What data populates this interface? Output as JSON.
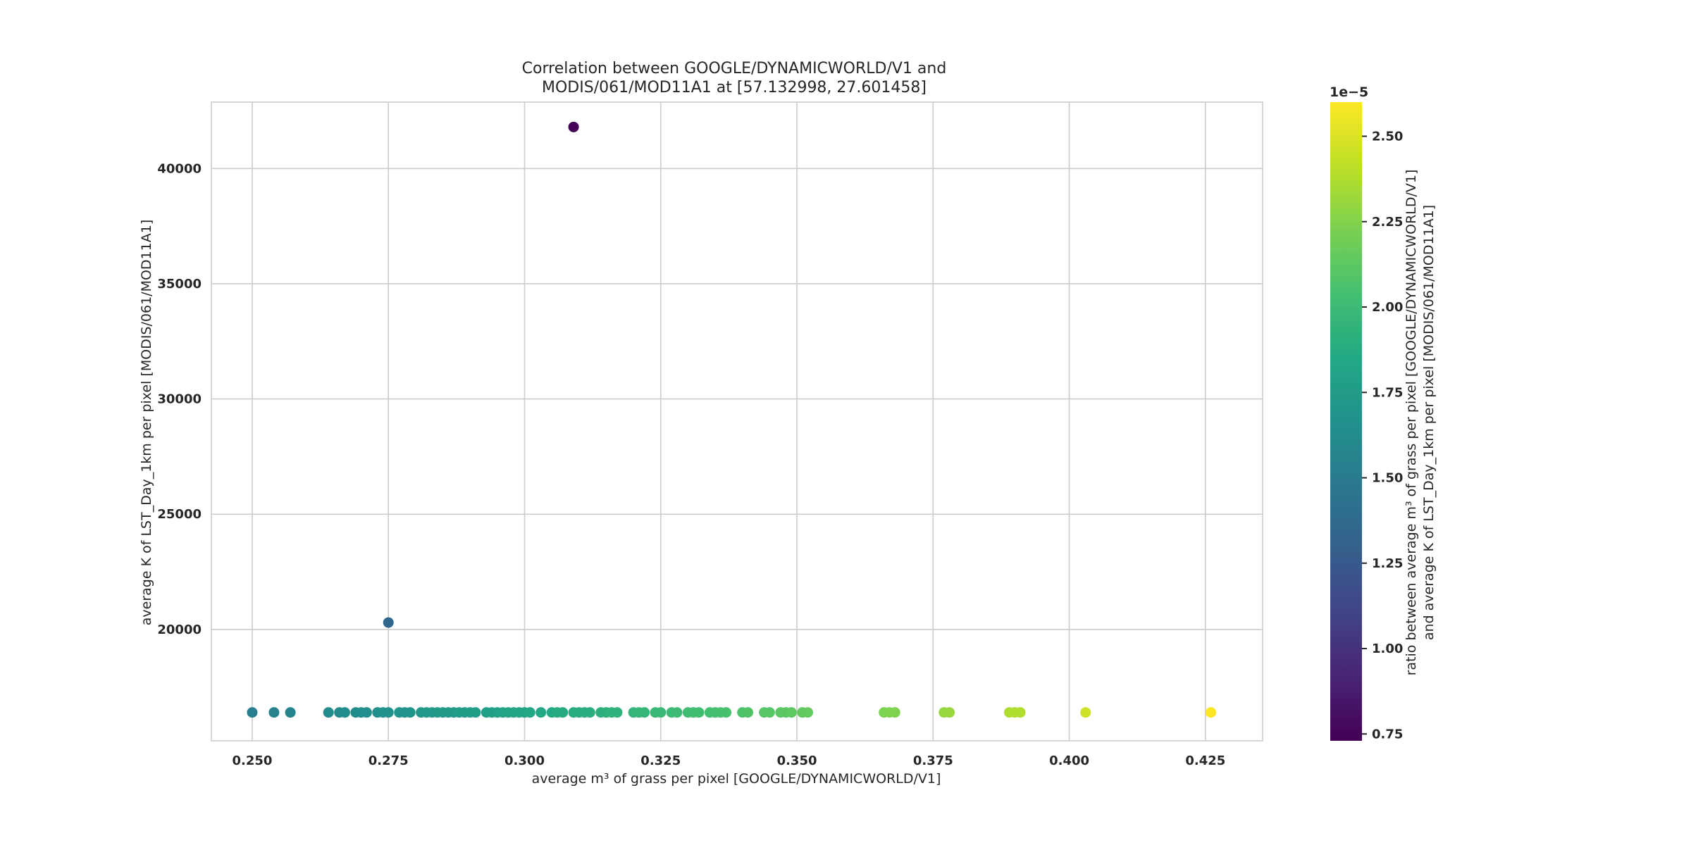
{
  "chart_data": {
    "type": "scatter",
    "title_lines": [
      "Correlation between GOOGLE/DYNAMICWORLD/V1 and",
      "MODIS/061/MOD11A1 at [57.132998, 27.601458]"
    ],
    "xlabel": "average m³ of grass per pixel [GOOGLE/DYNAMICWORLD/V1]",
    "ylabel": "average K of LST_Day_1km per pixel [MODIS/061/MOD11A1]",
    "xlim": [
      0.2425,
      0.4355
    ],
    "ylim": [
      15170,
      42880
    ],
    "xticks": [
      0.25,
      0.275,
      0.3,
      0.325,
      0.35,
      0.375,
      0.4,
      0.425
    ],
    "xtick_labels": [
      "0.250",
      "0.275",
      "0.300",
      "0.325",
      "0.350",
      "0.375",
      "0.400",
      "0.425"
    ],
    "yticks": [
      20000,
      25000,
      30000,
      35000,
      40000
    ],
    "ytick_labels": [
      "20000",
      "25000",
      "30000",
      "35000",
      "40000"
    ],
    "grid": true,
    "colormap": "viridis",
    "colorbar": {
      "label_lines": [
        "ratio between average m³ of grass per pixel [GOOGLE/DYNAMICWORLD/V1]",
        "and average K of LST_Day_1km per pixel [MODIS/061/MOD11A1]"
      ],
      "exponent_label": "1e−5",
      "range": [
        0.73,
        2.6
      ],
      "ticks": [
        0.75,
        1.0,
        1.25,
        1.5,
        1.75,
        2.0,
        2.25,
        2.5
      ],
      "tick_labels": [
        "0.75",
        "1.00",
        "1.25",
        "1.50",
        "1.75",
        "2.00",
        "2.25",
        "2.50"
      ]
    },
    "points": [
      {
        "x": 0.309,
        "y": 41800,
        "c": 0.74
      },
      {
        "x": 0.275,
        "y": 20300,
        "c": 1.35
      },
      {
        "x": 0.25,
        "y": 16400,
        "c": 1.52
      },
      {
        "x": 0.254,
        "y": 16400,
        "c": 1.55
      },
      {
        "x": 0.257,
        "y": 16400,
        "c": 1.57
      },
      {
        "x": 0.264,
        "y": 16400,
        "c": 1.61
      },
      {
        "x": 0.266,
        "y": 16400,
        "c": 1.62
      },
      {
        "x": 0.267,
        "y": 16400,
        "c": 1.63
      },
      {
        "x": 0.269,
        "y": 16400,
        "c": 1.64
      },
      {
        "x": 0.27,
        "y": 16400,
        "c": 1.65
      },
      {
        "x": 0.271,
        "y": 16400,
        "c": 1.65
      },
      {
        "x": 0.273,
        "y": 16400,
        "c": 1.66
      },
      {
        "x": 0.274,
        "y": 16400,
        "c": 1.67
      },
      {
        "x": 0.275,
        "y": 16400,
        "c": 1.67
      },
      {
        "x": 0.277,
        "y": 16400,
        "c": 1.69
      },
      {
        "x": 0.278,
        "y": 16400,
        "c": 1.69
      },
      {
        "x": 0.279,
        "y": 16400,
        "c": 1.7
      },
      {
        "x": 0.281,
        "y": 16400,
        "c": 1.71
      },
      {
        "x": 0.282,
        "y": 16400,
        "c": 1.72
      },
      {
        "x": 0.283,
        "y": 16400,
        "c": 1.72
      },
      {
        "x": 0.284,
        "y": 16400,
        "c": 1.73
      },
      {
        "x": 0.285,
        "y": 16400,
        "c": 1.74
      },
      {
        "x": 0.286,
        "y": 16400,
        "c": 1.74
      },
      {
        "x": 0.287,
        "y": 16400,
        "c": 1.75
      },
      {
        "x": 0.288,
        "y": 16400,
        "c": 1.76
      },
      {
        "x": 0.289,
        "y": 16400,
        "c": 1.76
      },
      {
        "x": 0.29,
        "y": 16400,
        "c": 1.77
      },
      {
        "x": 0.291,
        "y": 16400,
        "c": 1.77
      },
      {
        "x": 0.293,
        "y": 16400,
        "c": 1.79
      },
      {
        "x": 0.294,
        "y": 16400,
        "c": 1.79
      },
      {
        "x": 0.295,
        "y": 16400,
        "c": 1.8
      },
      {
        "x": 0.296,
        "y": 16400,
        "c": 1.8
      },
      {
        "x": 0.297,
        "y": 16400,
        "c": 1.81
      },
      {
        "x": 0.298,
        "y": 16400,
        "c": 1.82
      },
      {
        "x": 0.299,
        "y": 16400,
        "c": 1.82
      },
      {
        "x": 0.3,
        "y": 16400,
        "c": 1.83
      },
      {
        "x": 0.301,
        "y": 16400,
        "c": 1.84
      },
      {
        "x": 0.303,
        "y": 16400,
        "c": 1.85
      },
      {
        "x": 0.305,
        "y": 16400,
        "c": 1.86
      },
      {
        "x": 0.306,
        "y": 16400,
        "c": 1.87
      },
      {
        "x": 0.307,
        "y": 16400,
        "c": 1.87
      },
      {
        "x": 0.309,
        "y": 16400,
        "c": 1.88
      },
      {
        "x": 0.31,
        "y": 16400,
        "c": 1.89
      },
      {
        "x": 0.311,
        "y": 16400,
        "c": 1.9
      },
      {
        "x": 0.312,
        "y": 16400,
        "c": 1.9
      },
      {
        "x": 0.314,
        "y": 16400,
        "c": 1.91
      },
      {
        "x": 0.315,
        "y": 16400,
        "c": 1.92
      },
      {
        "x": 0.316,
        "y": 16400,
        "c": 1.93
      },
      {
        "x": 0.317,
        "y": 16400,
        "c": 1.93
      },
      {
        "x": 0.32,
        "y": 16400,
        "c": 1.95
      },
      {
        "x": 0.321,
        "y": 16400,
        "c": 1.96
      },
      {
        "x": 0.322,
        "y": 16400,
        "c": 1.96
      },
      {
        "x": 0.324,
        "y": 16400,
        "c": 1.98
      },
      {
        "x": 0.325,
        "y": 16400,
        "c": 1.98
      },
      {
        "x": 0.327,
        "y": 16400,
        "c": 1.99
      },
      {
        "x": 0.328,
        "y": 16400,
        "c": 2.0
      },
      {
        "x": 0.33,
        "y": 16400,
        "c": 2.01
      },
      {
        "x": 0.331,
        "y": 16400,
        "c": 2.02
      },
      {
        "x": 0.332,
        "y": 16400,
        "c": 2.02
      },
      {
        "x": 0.334,
        "y": 16400,
        "c": 2.04
      },
      {
        "x": 0.335,
        "y": 16400,
        "c": 2.04
      },
      {
        "x": 0.336,
        "y": 16400,
        "c": 2.05
      },
      {
        "x": 0.337,
        "y": 16400,
        "c": 2.05
      },
      {
        "x": 0.34,
        "y": 16400,
        "c": 2.07
      },
      {
        "x": 0.341,
        "y": 16400,
        "c": 2.08
      },
      {
        "x": 0.344,
        "y": 16400,
        "c": 2.1
      },
      {
        "x": 0.345,
        "y": 16400,
        "c": 2.1
      },
      {
        "x": 0.347,
        "y": 16400,
        "c": 2.12
      },
      {
        "x": 0.348,
        "y": 16400,
        "c": 2.12
      },
      {
        "x": 0.349,
        "y": 16400,
        "c": 2.13
      },
      {
        "x": 0.351,
        "y": 16400,
        "c": 2.14
      },
      {
        "x": 0.352,
        "y": 16400,
        "c": 2.15
      },
      {
        "x": 0.366,
        "y": 16400,
        "c": 2.23
      },
      {
        "x": 0.367,
        "y": 16400,
        "c": 2.24
      },
      {
        "x": 0.368,
        "y": 16400,
        "c": 2.24
      },
      {
        "x": 0.377,
        "y": 16400,
        "c": 2.3
      },
      {
        "x": 0.378,
        "y": 16400,
        "c": 2.31
      },
      {
        "x": 0.389,
        "y": 16400,
        "c": 2.37
      },
      {
        "x": 0.39,
        "y": 16400,
        "c": 2.38
      },
      {
        "x": 0.391,
        "y": 16400,
        "c": 2.38
      },
      {
        "x": 0.403,
        "y": 16400,
        "c": 2.46
      },
      {
        "x": 0.426,
        "y": 16400,
        "c": 2.6
      }
    ]
  }
}
